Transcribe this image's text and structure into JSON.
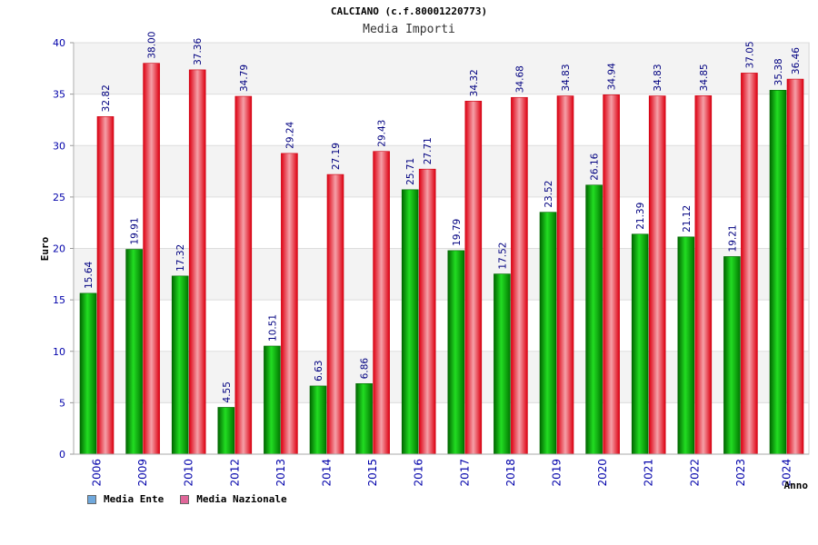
{
  "chart_data": {
    "type": "bar",
    "title": "CALCIANO (c.f.80001220773)",
    "subtitle": "Media Importi",
    "ylabel": "Euro",
    "xlabel": "Anno",
    "ylim": [
      0,
      40
    ],
    "yticks": [
      0,
      5,
      10,
      15,
      20,
      25,
      30,
      35,
      40
    ],
    "grid": true,
    "legend_position": "bottom-left",
    "categories": [
      "2006",
      "2009",
      "2010",
      "2012",
      "2013",
      "2014",
      "2015",
      "2016",
      "2017",
      "2018",
      "2019",
      "2020",
      "2021",
      "2022",
      "2023",
      "2024"
    ],
    "series": [
      {
        "name": "Media Ente",
        "color": "#00aa00",
        "legend_color": "#6fa8dc",
        "values": [
          15.64,
          19.91,
          17.32,
          4.55,
          10.51,
          6.63,
          6.86,
          25.71,
          19.79,
          17.52,
          23.52,
          26.16,
          21.39,
          21.12,
          19.21,
          35.38
        ],
        "labels": [
          "15.64",
          "19.91",
          "17.32",
          "4.55",
          "10.51",
          "6.63",
          "6.86",
          "25.71",
          "19.79",
          "17.52",
          "23.52",
          "26.16",
          "21.39",
          "21.12",
          "19.21",
          "35.38"
        ]
      },
      {
        "name": "Media Nazionale",
        "color": "#ee1122",
        "legend_color": "#e06699",
        "values": [
          32.82,
          38.0,
          37.36,
          34.79,
          29.24,
          27.19,
          29.43,
          27.71,
          34.32,
          34.68,
          34.83,
          34.94,
          34.83,
          34.85,
          37.05,
          36.46
        ],
        "labels": [
          "32.82",
          "38.00",
          "37.36",
          "34.79",
          "29.24",
          "27.19",
          "29.43",
          "27.71",
          "34.32",
          "34.68",
          "34.83",
          "34.94",
          "34.83",
          "34.85",
          "37.05",
          "36.46"
        ]
      }
    ]
  }
}
